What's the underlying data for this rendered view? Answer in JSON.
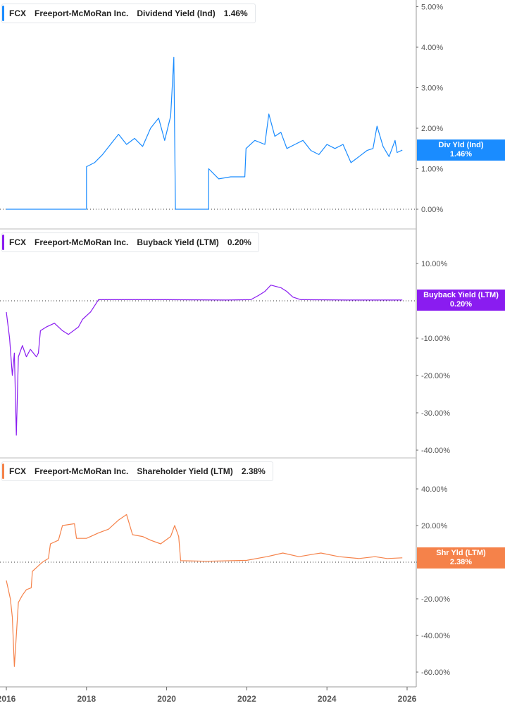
{
  "chart_data": [
    {
      "type": "line",
      "ticker": "FCX",
      "company": "Freeport-McMoRan Inc.",
      "metric": "Dividend Yield (Ind)",
      "current": "1.46%",
      "badge_label": "Div Yld (Ind)",
      "color": "#1a8cff",
      "ylim": [
        -0.5,
        5.2
      ],
      "yticks": [
        "5.00%",
        "4.00%",
        "3.00%",
        "2.00%",
        "1.00%",
        "0.00%"
      ],
      "ytick_values": [
        5,
        4,
        3,
        2,
        1,
        0
      ],
      "points": [
        [
          2016,
          0
        ],
        [
          2018.0,
          0
        ],
        [
          2018.0,
          1.05
        ],
        [
          2018.2,
          1.15
        ],
        [
          2018.4,
          1.35
        ],
        [
          2018.6,
          1.6
        ],
        [
          2018.8,
          1.85
        ],
        [
          2019.0,
          1.6
        ],
        [
          2019.2,
          1.75
        ],
        [
          2019.4,
          1.55
        ],
        [
          2019.6,
          2.0
        ],
        [
          2019.8,
          2.25
        ],
        [
          2019.95,
          1.7
        ],
        [
          2020.1,
          2.3
        ],
        [
          2020.18,
          3.75
        ],
        [
          2020.22,
          0
        ],
        [
          2021.05,
          0
        ],
        [
          2021.05,
          1.0
        ],
        [
          2021.3,
          0.75
        ],
        [
          2021.6,
          0.8
        ],
        [
          2021.95,
          0.8
        ],
        [
          2021.98,
          1.5
        ],
        [
          2022.2,
          1.7
        ],
        [
          2022.45,
          1.6
        ],
        [
          2022.55,
          2.35
        ],
        [
          2022.7,
          1.8
        ],
        [
          2022.85,
          1.9
        ],
        [
          2023.0,
          1.5
        ],
        [
          2023.2,
          1.6
        ],
        [
          2023.4,
          1.7
        ],
        [
          2023.6,
          1.45
        ],
        [
          2023.8,
          1.35
        ],
        [
          2024.0,
          1.6
        ],
        [
          2024.2,
          1.5
        ],
        [
          2024.4,
          1.6
        ],
        [
          2024.6,
          1.15
        ],
        [
          2024.8,
          1.3
        ],
        [
          2025.0,
          1.45
        ],
        [
          2025.15,
          1.5
        ],
        [
          2025.25,
          2.05
        ],
        [
          2025.4,
          1.55
        ],
        [
          2025.55,
          1.3
        ],
        [
          2025.7,
          1.7
        ],
        [
          2025.75,
          1.4
        ],
        [
          2025.88,
          1.46
        ]
      ]
    },
    {
      "type": "line",
      "ticker": "FCX",
      "company": "Freeport-McMoRan Inc.",
      "metric": "Buyback Yield (LTM)",
      "current": "0.20%",
      "badge_label": "Buyback Yield (LTM)",
      "color": "#8a1cf0",
      "ylim": [
        -42,
        12
      ],
      "yticks": [
        "10.00%",
        "-10.00%",
        "-20.00%",
        "-30.00%",
        "-40.00%"
      ],
      "ytick_values": [
        10,
        -10,
        -20,
        -30,
        -40
      ],
      "points": [
        [
          2016,
          -3
        ],
        [
          2016.08,
          -10
        ],
        [
          2016.15,
          -20
        ],
        [
          2016.2,
          -14
        ],
        [
          2016.25,
          -36
        ],
        [
          2016.3,
          -15
        ],
        [
          2016.4,
          -12
        ],
        [
          2016.5,
          -15
        ],
        [
          2016.6,
          -13
        ],
        [
          2016.75,
          -15
        ],
        [
          2016.8,
          -14
        ],
        [
          2016.85,
          -8
        ],
        [
          2017.0,
          -7
        ],
        [
          2017.2,
          -6
        ],
        [
          2017.4,
          -8
        ],
        [
          2017.55,
          -9
        ],
        [
          2017.8,
          -7
        ],
        [
          2017.9,
          -5
        ],
        [
          2018.1,
          -3
        ],
        [
          2018.3,
          0.3
        ],
        [
          2020,
          0.3
        ],
        [
          2021.5,
          0.2
        ],
        [
          2022.1,
          0.3
        ],
        [
          2022.3,
          1.5
        ],
        [
          2022.45,
          2.5
        ],
        [
          2022.6,
          4.2
        ],
        [
          2022.85,
          3.5
        ],
        [
          2023.0,
          2.5
        ],
        [
          2023.15,
          1
        ],
        [
          2023.35,
          0.3
        ],
        [
          2024.5,
          0.2
        ],
        [
          2025.88,
          0.2
        ]
      ]
    },
    {
      "type": "line",
      "ticker": "FCX",
      "company": "Freeport-McMoRan Inc.",
      "metric": "Shareholder Yield (LTM)",
      "current": "2.38%",
      "badge_label": "Shr Yld (LTM)",
      "color": "#f5824a",
      "ylim": [
        -62,
        46
      ],
      "yticks": [
        "40.00%",
        "20.00%",
        "0.00%",
        "-20.00%",
        "-40.00%",
        "-60.00%"
      ],
      "ytick_values": [
        40,
        20,
        0,
        -20,
        -40,
        -60
      ],
      "points": [
        [
          2016,
          -10
        ],
        [
          2016.1,
          -20
        ],
        [
          2016.15,
          -30
        ],
        [
          2016.2,
          -57
        ],
        [
          2016.3,
          -22
        ],
        [
          2016.4,
          -18
        ],
        [
          2016.5,
          -15
        ],
        [
          2016.62,
          -14
        ],
        [
          2016.65,
          -5
        ],
        [
          2016.8,
          -2
        ],
        [
          2016.9,
          0
        ],
        [
          2017.05,
          2
        ],
        [
          2017.1,
          10
        ],
        [
          2017.3,
          12
        ],
        [
          2017.4,
          20
        ],
        [
          2017.7,
          21
        ],
        [
          2017.75,
          13
        ],
        [
          2018.0,
          13
        ],
        [
          2018.3,
          16
        ],
        [
          2018.55,
          18
        ],
        [
          2018.8,
          23
        ],
        [
          2019.0,
          26
        ],
        [
          2019.15,
          15
        ],
        [
          2019.4,
          14
        ],
        [
          2019.6,
          12
        ],
        [
          2019.85,
          10
        ],
        [
          2020.1,
          14
        ],
        [
          2020.2,
          20
        ],
        [
          2020.3,
          14
        ],
        [
          2020.35,
          0.8
        ],
        [
          2021,
          0.5
        ],
        [
          2022,
          1
        ],
        [
          2022.5,
          3
        ],
        [
          2022.9,
          5
        ],
        [
          2023.3,
          3
        ],
        [
          2023.7,
          4.5
        ],
        [
          2023.85,
          5
        ],
        [
          2024.3,
          3
        ],
        [
          2024.8,
          2
        ],
        [
          2025.2,
          3
        ],
        [
          2025.5,
          2
        ],
        [
          2025.88,
          2.38
        ]
      ]
    }
  ],
  "x_axis": {
    "labels": [
      "2016",
      "2018",
      "2020",
      "2022",
      "2024",
      "2026"
    ],
    "values": [
      2016,
      2018,
      2020,
      2022,
      2024,
      2026
    ]
  }
}
